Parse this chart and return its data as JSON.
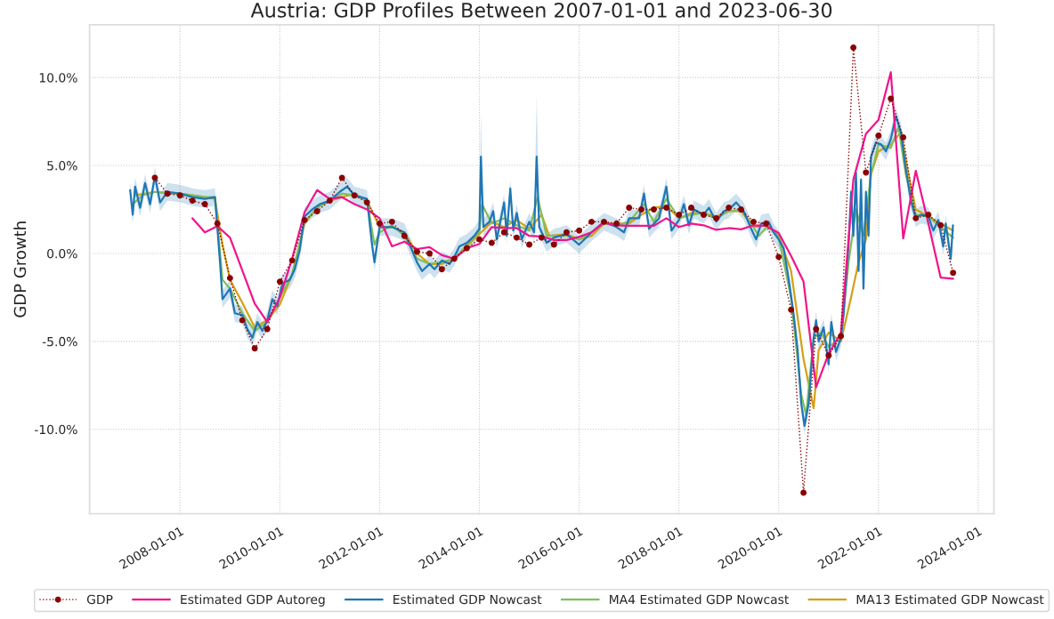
{
  "chart_data": {
    "type": "line",
    "title": "Austria: GDP Profiles Between 2007-01-01 and 2023-06-30",
    "ylabel": "GDP Growth",
    "xlim": [
      "2006-03-10",
      "2024-04-25"
    ],
    "xticks": [
      "2008-01-01",
      "2010-01-01",
      "2012-01-01",
      "2014-01-01",
      "2016-01-01",
      "2018-01-01",
      "2020-01-01",
      "2022-01-01",
      "2024-01-01"
    ],
    "ylim": [
      -14.8,
      13.0
    ],
    "yticks": [
      {
        "value": 10,
        "label": "10.0%"
      },
      {
        "value": 5,
        "label": "5.0%"
      },
      {
        "value": 0,
        "label": "0.0%"
      },
      {
        "value": -5,
        "label": "-5.0%"
      },
      {
        "value": -10,
        "label": "-10.0%"
      }
    ],
    "grid": true,
    "legend": "bottom",
    "series": [
      {
        "name": "GDP",
        "color": "#8b0000",
        "marker": "circle",
        "line_style": "dotted",
        "x": [
          "2007-07-01",
          "2007-10-01",
          "2008-01-01",
          "2008-04-01",
          "2008-07-01",
          "2008-10-01",
          "2009-01-01",
          "2009-04-01",
          "2009-07-01",
          "2009-10-01",
          "2010-01-01",
          "2010-04-01",
          "2010-07-01",
          "2010-10-01",
          "2011-01-01",
          "2011-04-01",
          "2011-07-01",
          "2011-10-01",
          "2012-01-01",
          "2012-04-01",
          "2012-07-01",
          "2012-10-01",
          "2013-01-01",
          "2013-04-01",
          "2013-07-01",
          "2013-10-01",
          "2014-01-01",
          "2014-04-01",
          "2014-07-01",
          "2014-10-01",
          "2015-01-01",
          "2015-04-01",
          "2015-07-01",
          "2015-10-01",
          "2016-01-01",
          "2016-04-01",
          "2016-07-01",
          "2016-10-01",
          "2017-01-01",
          "2017-04-01",
          "2017-07-01",
          "2017-10-01",
          "2018-01-01",
          "2018-04-01",
          "2018-07-01",
          "2018-10-01",
          "2019-01-01",
          "2019-04-01",
          "2019-07-01",
          "2019-10-01",
          "2020-01-01",
          "2020-04-01",
          "2020-07-01",
          "2020-10-01",
          "2021-01-01",
          "2021-04-01",
          "2021-07-01",
          "2021-10-01",
          "2022-01-01",
          "2022-04-01",
          "2022-07-01",
          "2022-10-01",
          "2023-01-01",
          "2023-04-01",
          "2023-07-01"
        ],
        "values": [
          4.3,
          3.4,
          3.3,
          3.0,
          2.8,
          1.7,
          -1.4,
          -3.8,
          -5.4,
          -4.3,
          -1.6,
          -0.4,
          1.9,
          2.4,
          3.0,
          4.3,
          3.3,
          2.9,
          1.7,
          1.8,
          1.0,
          0.1,
          0.0,
          -0.9,
          -0.3,
          0.3,
          0.8,
          0.6,
          1.2,
          0.9,
          0.5,
          0.9,
          0.5,
          1.2,
          1.3,
          1.8,
          1.8,
          1.7,
          2.6,
          2.5,
          2.5,
          2.6,
          2.2,
          2.6,
          2.2,
          2.0,
          2.6,
          2.5,
          1.8,
          1.7,
          -0.2,
          -3.2,
          -13.6,
          -4.3,
          -5.8,
          -4.7,
          11.7,
          4.6,
          6.7,
          8.8,
          6.6,
          2.0,
          2.2,
          1.6,
          -1.1
        ]
      },
      {
        "name": "Estimated GDP Autoreg",
        "color": "#f0148c",
        "marker": "none",
        "line_style": "solid",
        "x": [
          "2008-04-01",
          "2008-07-01",
          "2008-10-01",
          "2009-01-01",
          "2009-07-01",
          "2009-10-01",
          "2010-01-01",
          "2010-04-01",
          "2010-07-01",
          "2010-10-01",
          "2011-01-01",
          "2011-04-01",
          "2011-07-01",
          "2011-10-01",
          "2012-01-01",
          "2012-04-01",
          "2012-07-01",
          "2012-10-01",
          "2013-01-01",
          "2013-04-01",
          "2013-07-01",
          "2013-10-01",
          "2014-01-01",
          "2014-04-01",
          "2014-07-01",
          "2014-10-01",
          "2015-01-01",
          "2015-04-01",
          "2015-07-01",
          "2015-10-01",
          "2016-01-01",
          "2016-04-01",
          "2016-07-01",
          "2016-10-01",
          "2017-01-01",
          "2017-04-01",
          "2017-07-01",
          "2017-10-01",
          "2018-01-01",
          "2018-04-01",
          "2018-07-01",
          "2018-10-01",
          "2019-01-01",
          "2019-04-01",
          "2019-07-01",
          "2019-10-01",
          "2020-01-01",
          "2020-04-01",
          "2020-07-01",
          "2020-10-01",
          "2021-01-01",
          "2021-04-01",
          "2021-07-01",
          "2021-10-01",
          "2022-01-01",
          "2022-04-01",
          "2022-07-01",
          "2022-10-01",
          "2023-01-01",
          "2023-04-01",
          "2023-07-01"
        ],
        "values": [
          2.0,
          1.2,
          1.55,
          0.9,
          -2.85,
          -3.9,
          -2.5,
          -0.3,
          2.35,
          3.6,
          3.1,
          3.2,
          2.8,
          2.5,
          2.0,
          0.4,
          0.67,
          0.25,
          0.36,
          -0.1,
          -0.3,
          0.3,
          0.54,
          1.5,
          1.44,
          1.44,
          1.0,
          0.97,
          0.76,
          0.76,
          0.94,
          1.2,
          1.75,
          1.6,
          1.57,
          1.57,
          1.57,
          2.0,
          1.5,
          1.7,
          1.6,
          1.34,
          1.44,
          1.37,
          1.6,
          1.57,
          1.16,
          -0.14,
          -1.6,
          -7.6,
          -5.7,
          -4.5,
          4.2,
          6.8,
          7.6,
          10.3,
          0.85,
          4.7,
          1.7,
          -1.37,
          -1.44
        ]
      },
      {
        "name": "Estimated GDP Nowcast",
        "color": "#1f77b4",
        "marker": "none",
        "line_style": "solid",
        "x": [
          "2007-01-01",
          "2007-01-20",
          "2007-02-06",
          "2007-03-15",
          "2007-04-20",
          "2007-05-27",
          "2007-07-01",
          "2007-08-08",
          "2007-10-01",
          "2008-01-01",
          "2008-04-01",
          "2008-07-01",
          "2008-09-13",
          "2008-10-20",
          "2008-11-07",
          "2009-01-01",
          "2009-02-06",
          "2009-04-01",
          "2009-05-08",
          "2009-06-14",
          "2009-07-20",
          "2009-08-26",
          "2009-10-01",
          "2009-11-07",
          "2009-12-13",
          "2010-01-20",
          "2010-03-15",
          "2010-04-20",
          "2010-05-27",
          "2010-07-01",
          "2010-08-26",
          "2010-10-20",
          "2011-01-01",
          "2011-03-15",
          "2011-05-08",
          "2011-07-01",
          "2011-10-01",
          "2011-11-07",
          "2011-11-25",
          "2012-01-01",
          "2012-04-01",
          "2012-07-01",
          "2012-08-08",
          "2012-10-01",
          "2012-11-07",
          "2013-01-01",
          "2013-02-06",
          "2013-04-01",
          "2013-05-27",
          "2013-07-01",
          "2013-08-08",
          "2013-10-01",
          "2013-11-25",
          "2014-01-01",
          "2014-01-12",
          "2014-01-30",
          "2014-03-15",
          "2014-04-12",
          "2014-05-08",
          "2014-07-01",
          "2014-07-20",
          "2014-08-15",
          "2014-09-06",
          "2014-10-01",
          "2014-11-07",
          "2015-01-01",
          "2015-02-06",
          "2015-02-24",
          "2015-03-15",
          "2015-05-08",
          "2015-07-01",
          "2015-10-01",
          "2016-01-01",
          "2016-04-01",
          "2016-07-01",
          "2016-10-01",
          "2016-11-25",
          "2017-01-01",
          "2017-03-15",
          "2017-04-20",
          "2017-05-27",
          "2017-08-08",
          "2017-10-01",
          "2017-11-07",
          "2018-01-01",
          "2018-02-06",
          "2018-03-15",
          "2018-04-20",
          "2018-07-01",
          "2018-08-08",
          "2018-10-01",
          "2018-11-25",
          "2019-01-01",
          "2019-02-24",
          "2019-04-20",
          "2019-06-14",
          "2019-07-20",
          "2019-08-26",
          "2019-10-20",
          "2019-11-25",
          "2020-01-01",
          "2020-02-06",
          "2020-03-15",
          "2020-04-20",
          "2020-05-19",
          "2020-06-14",
          "2020-07-08",
          "2020-08-08",
          "2020-09-13",
          "2020-10-01",
          "2020-10-20",
          "2020-11-25",
          "2021-01-01",
          "2021-01-20",
          "2021-02-24",
          "2021-04-01",
          "2021-04-20",
          "2021-05-27",
          "2021-06-14",
          "2021-07-01",
          "2021-07-20",
          "2021-08-08",
          "2021-08-26",
          "2021-09-13",
          "2021-10-01",
          "2021-10-20",
          "2021-11-07",
          "2021-12-13",
          "2022-01-20",
          "2022-02-24",
          "2022-04-01",
          "2022-05-08",
          "2022-06-14",
          "2022-07-20",
          "2022-08-26",
          "2022-10-01",
          "2022-11-07",
          "2023-01-01",
          "2023-02-06",
          "2023-03-15",
          "2023-04-20",
          "2023-05-08",
          "2023-06-14",
          "2023-06-30"
        ],
        "values": [
          3.6,
          2.2,
          3.8,
          2.6,
          4.0,
          2.8,
          4.4,
          2.9,
          3.5,
          3.4,
          3.2,
          3.1,
          3.2,
          -0.5,
          -2.6,
          -2.0,
          -3.4,
          -3.5,
          -4.3,
          -4.8,
          -3.9,
          -4.4,
          -3.8,
          -2.6,
          -3.0,
          -1.7,
          -1.5,
          -0.9,
          0.2,
          2.1,
          2.5,
          2.8,
          3.0,
          3.5,
          3.8,
          3.3,
          3.1,
          0.5,
          -0.5,
          1.5,
          1.5,
          1.2,
          0.5,
          -0.5,
          -1.0,
          -0.6,
          -0.9,
          -0.4,
          -0.6,
          -0.2,
          0.4,
          0.6,
          1.0,
          1.4,
          5.5,
          1.5,
          1.8,
          2.4,
          0.8,
          2.9,
          1.0,
          3.7,
          1.3,
          2.3,
          0.8,
          1.8,
          1.2,
          5.5,
          1.5,
          0.6,
          0.9,
          1.1,
          0.5,
          1.2,
          1.8,
          1.5,
          1.2,
          2.0,
          2.0,
          3.4,
          1.4,
          2.0,
          3.8,
          1.3,
          1.9,
          2.8,
          1.6,
          2.5,
          2.2,
          2.6,
          1.8,
          2.4,
          2.5,
          2.9,
          2.4,
          1.4,
          0.8,
          1.7,
          1.8,
          1.2,
          0.8,
          0.3,
          -1.5,
          -3.5,
          -5.5,
          -8.5,
          -9.8,
          -8.5,
          -4.8,
          -3.8,
          -5.0,
          -4.2,
          -6.3,
          -3.9,
          -5.6,
          -4.8,
          -3.5,
          0.5,
          3.5,
          1.0,
          4.6,
          -1.0,
          4.2,
          -2.0,
          3.5,
          1.0,
          5.5,
          6.3,
          6.2,
          5.8,
          6.5,
          7.8,
          6.9,
          4.8,
          3.0,
          2.0,
          2.2,
          2.1,
          1.3,
          1.9,
          0.4,
          1.7,
          -0.3,
          1.6
        ],
        "lower": [
          3.1,
          1.7,
          3.3,
          2.1,
          3.5,
          2.3,
          3.9,
          2.4,
          3.0,
          2.9,
          2.7,
          2.6,
          2.7,
          -1.0,
          -3.1,
          -2.5,
          -3.9,
          -4.0,
          -4.8,
          -5.3,
          -4.4,
          -4.9,
          -4.3,
          -3.1,
          -3.5,
          -2.2,
          -2.0,
          -1.4,
          -0.3,
          1.6,
          2.0,
          2.3,
          2.5,
          3.0,
          3.3,
          2.8,
          2.6,
          0.0,
          -1.0,
          1.0,
          1.0,
          0.7,
          0.0,
          -1.0,
          -1.5,
          -1.1,
          -1.4,
          -0.9,
          -1.1,
          -0.7,
          -0.1,
          0.1,
          0.5,
          0.9,
          5.0,
          1.0,
          1.3,
          1.9,
          0.3,
          2.4,
          0.5,
          3.2,
          0.8,
          1.8,
          0.3,
          1.3,
          0.7,
          5.0,
          1.0,
          0.1,
          0.4,
          0.6,
          0.0,
          0.7,
          1.3,
          1.0,
          0.7,
          1.5,
          1.5,
          2.9,
          0.9,
          1.5,
          3.3,
          0.8,
          1.4,
          2.3,
          1.1,
          2.0,
          1.7,
          2.1,
          1.3,
          1.9,
          2.0,
          2.4,
          1.9,
          0.9,
          0.3,
          1.2,
          1.3,
          0.7,
          0.3,
          -0.2,
          -2.0,
          -4.0,
          -6.0,
          -9.0,
          -10.3,
          -9.0,
          -5.3,
          -4.3,
          -5.5,
          -4.7,
          -6.8,
          -4.4,
          -6.1,
          -5.3,
          -4.0,
          0.0,
          3.0,
          0.5,
          4.1,
          -1.5,
          3.7,
          -2.5,
          3.0,
          0.5,
          5.0,
          5.8,
          5.7,
          5.3,
          6.0,
          7.3,
          6.4,
          4.3,
          2.5,
          1.5,
          1.7,
          1.6,
          0.8,
          1.4,
          -0.1,
          1.2,
          -0.8,
          1.1
        ],
        "upper": [
          4.1,
          2.7,
          4.3,
          3.1,
          4.5,
          3.3,
          4.9,
          3.4,
          4.0,
          3.9,
          3.7,
          3.6,
          3.7,
          0.0,
          -2.1,
          -1.5,
          -2.9,
          -3.0,
          -3.8,
          -4.3,
          -3.4,
          -3.9,
          -3.3,
          -2.1,
          -2.5,
          -1.2,
          -1.0,
          -0.4,
          0.7,
          2.6,
          3.0,
          3.3,
          3.5,
          4.0,
          4.3,
          3.8,
          3.6,
          1.0,
          0.0,
          2.0,
          2.0,
          1.7,
          1.0,
          0.0,
          -0.5,
          -0.1,
          -0.4,
          0.1,
          -0.1,
          0.3,
          0.9,
          1.1,
          1.5,
          1.9,
          8.0,
          2.0,
          2.3,
          2.9,
          1.3,
          3.4,
          1.5,
          4.2,
          1.8,
          2.8,
          1.3,
          2.3,
          1.7,
          9.0,
          2.0,
          1.1,
          1.4,
          1.6,
          1.0,
          1.7,
          2.3,
          2.0,
          1.7,
          2.5,
          2.5,
          3.9,
          1.9,
          2.5,
          4.3,
          1.8,
          2.4,
          3.3,
          2.1,
          3.0,
          2.7,
          3.1,
          2.3,
          2.9,
          3.0,
          3.4,
          2.9,
          1.9,
          1.3,
          2.2,
          2.3,
          1.7,
          1.3,
          0.8,
          -1.0,
          -3.0,
          -5.0,
          -8.0,
          -9.3,
          -8.0,
          -4.3,
          -3.3,
          -4.5,
          -3.7,
          -5.8,
          -3.4,
          -5.1,
          -4.3,
          -3.0,
          1.0,
          4.0,
          1.5,
          5.1,
          -0.5,
          4.7,
          -1.5,
          4.0,
          1.5,
          6.0,
          6.8,
          6.7,
          6.3,
          7.0,
          8.3,
          7.4,
          5.3,
          3.5,
          2.5,
          2.7,
          2.6,
          1.8,
          2.4,
          0.9,
          2.2,
          0.2,
          2.1
        ]
      },
      {
        "name": "MA4 Estimated GDP Nowcast",
        "color": "#7fbf5f",
        "marker": "none",
        "line_style": "solid",
        "x": [
          "2007-01-20",
          "2007-04-01",
          "2007-07-01",
          "2007-10-01",
          "2008-01-01",
          "2008-04-01",
          "2008-07-01",
          "2008-09-13",
          "2008-11-07",
          "2009-01-01",
          "2009-04-01",
          "2009-07-01",
          "2009-10-01",
          "2010-01-01",
          "2010-04-01",
          "2010-07-01",
          "2010-10-01",
          "2011-01-01",
          "2011-04-01",
          "2011-07-01",
          "2011-10-01",
          "2011-11-25",
          "2012-01-01",
          "2012-04-01",
          "2012-07-01",
          "2012-10-01",
          "2013-01-01",
          "2013-04-01",
          "2013-07-01",
          "2013-10-01",
          "2014-01-01",
          "2014-01-20",
          "2014-04-01",
          "2014-07-01",
          "2014-10-01",
          "2015-01-01",
          "2015-03-03",
          "2015-05-08",
          "2015-07-01",
          "2015-10-01",
          "2016-01-01",
          "2016-04-01",
          "2016-07-01",
          "2016-10-01",
          "2017-01-01",
          "2017-04-20",
          "2017-07-01",
          "2017-10-01",
          "2018-01-01",
          "2018-04-01",
          "2018-07-01",
          "2018-10-01",
          "2019-01-01",
          "2019-04-01",
          "2019-07-01",
          "2019-08-08",
          "2019-10-20",
          "2020-01-01",
          "2020-04-01",
          "2020-06-14",
          "2020-07-20",
          "2020-09-13",
          "2020-11-07",
          "2021-01-01",
          "2021-04-01",
          "2021-05-27",
          "2021-07-20",
          "2021-09-13",
          "2021-11-07",
          "2022-01-01",
          "2022-04-01",
          "2022-05-27",
          "2022-07-20",
          "2022-10-01",
          "2023-01-01",
          "2023-04-01",
          "2023-07-01"
        ],
        "values": [
          2.8,
          3.3,
          3.5,
          3.4,
          3.4,
          3.3,
          3.2,
          3.2,
          -1.5,
          -2.0,
          -3.4,
          -4.4,
          -3.9,
          -2.5,
          -1.2,
          1.8,
          2.6,
          3.0,
          3.4,
          3.3,
          3.0,
          0.5,
          1.2,
          1.6,
          1.0,
          -0.3,
          -0.6,
          -0.5,
          -0.3,
          0.5,
          1.2,
          2.8,
          1.7,
          2.0,
          1.6,
          1.3,
          3.2,
          1.0,
          1.0,
          1.0,
          0.8,
          1.2,
          1.7,
          1.6,
          1.8,
          2.8,
          1.8,
          3.1,
          2.0,
          2.2,
          2.3,
          2.0,
          2.4,
          2.5,
          1.5,
          1.0,
          1.6,
          0.9,
          -2.5,
          -8.0,
          -9.2,
          -4.8,
          -4.5,
          -5.3,
          -4.8,
          -0.5,
          2.5,
          1.0,
          4.5,
          6.2,
          6.0,
          7.2,
          4.5,
          2.2,
          2.1,
          1.5,
          0.9
        ]
      },
      {
        "name": "MA13 Estimated GDP Nowcast",
        "color": "#d4a017",
        "marker": "none",
        "line_style": "solid",
        "x": [
          "2007-02-06",
          "2007-07-01",
          "2008-01-01",
          "2008-07-01",
          "2008-09-13",
          "2008-11-07",
          "2009-01-01",
          "2009-04-01",
          "2009-07-01",
          "2009-10-01",
          "2010-01-01",
          "2010-04-01",
          "2010-07-01",
          "2010-10-01",
          "2011-01-01",
          "2011-07-01",
          "2011-10-01",
          "2012-01-01",
          "2012-04-01",
          "2012-07-01",
          "2012-10-01",
          "2013-01-01",
          "2013-04-01",
          "2013-07-01",
          "2013-10-01",
          "2014-01-01",
          "2014-04-01",
          "2014-07-01",
          "2014-10-01",
          "2015-01-01",
          "2015-04-01",
          "2015-05-27",
          "2015-10-01",
          "2016-01-01",
          "2016-04-01",
          "2016-07-01",
          "2016-10-01",
          "2017-01-01",
          "2017-04-01",
          "2017-07-01",
          "2017-10-01",
          "2018-01-01",
          "2018-04-01",
          "2018-07-01",
          "2018-10-01",
          "2019-01-01",
          "2019-04-01",
          "2019-07-01",
          "2019-10-01",
          "2020-01-01",
          "2020-04-01",
          "2020-07-01",
          "2020-09-13",
          "2020-10-20",
          "2021-01-01",
          "2021-04-01",
          "2021-06-14",
          "2021-08-08",
          "2021-10-01",
          "2021-11-07",
          "2022-01-01",
          "2022-04-01",
          "2022-06-14",
          "2022-08-08",
          "2022-10-01",
          "2023-01-01",
          "2023-04-01",
          "2023-07-01"
        ],
        "values": [
          3.3,
          3.5,
          3.4,
          3.2,
          3.1,
          0.5,
          -1.5,
          -2.8,
          -4.2,
          -3.8,
          -2.9,
          -1.2,
          1.7,
          2.6,
          3.0,
          3.4,
          3.0,
          1.5,
          1.5,
          1.2,
          0.0,
          -0.6,
          -0.6,
          -0.3,
          0.4,
          1.1,
          1.8,
          1.5,
          1.9,
          1.4,
          2.2,
          1.0,
          1.1,
          0.8,
          1.0,
          1.7,
          1.7,
          1.7,
          2.2,
          2.6,
          2.7,
          2.0,
          2.3,
          2.3,
          2.1,
          2.4,
          2.4,
          1.5,
          1.6,
          1.0,
          -1.0,
          -6.0,
          -8.8,
          -5.5,
          -4.5,
          -5.0,
          -2.5,
          -0.5,
          0.8,
          4.5,
          5.8,
          6.2,
          6.9,
          4.5,
          2.5,
          2.1,
          1.7,
          1.3
        ]
      }
    ]
  }
}
